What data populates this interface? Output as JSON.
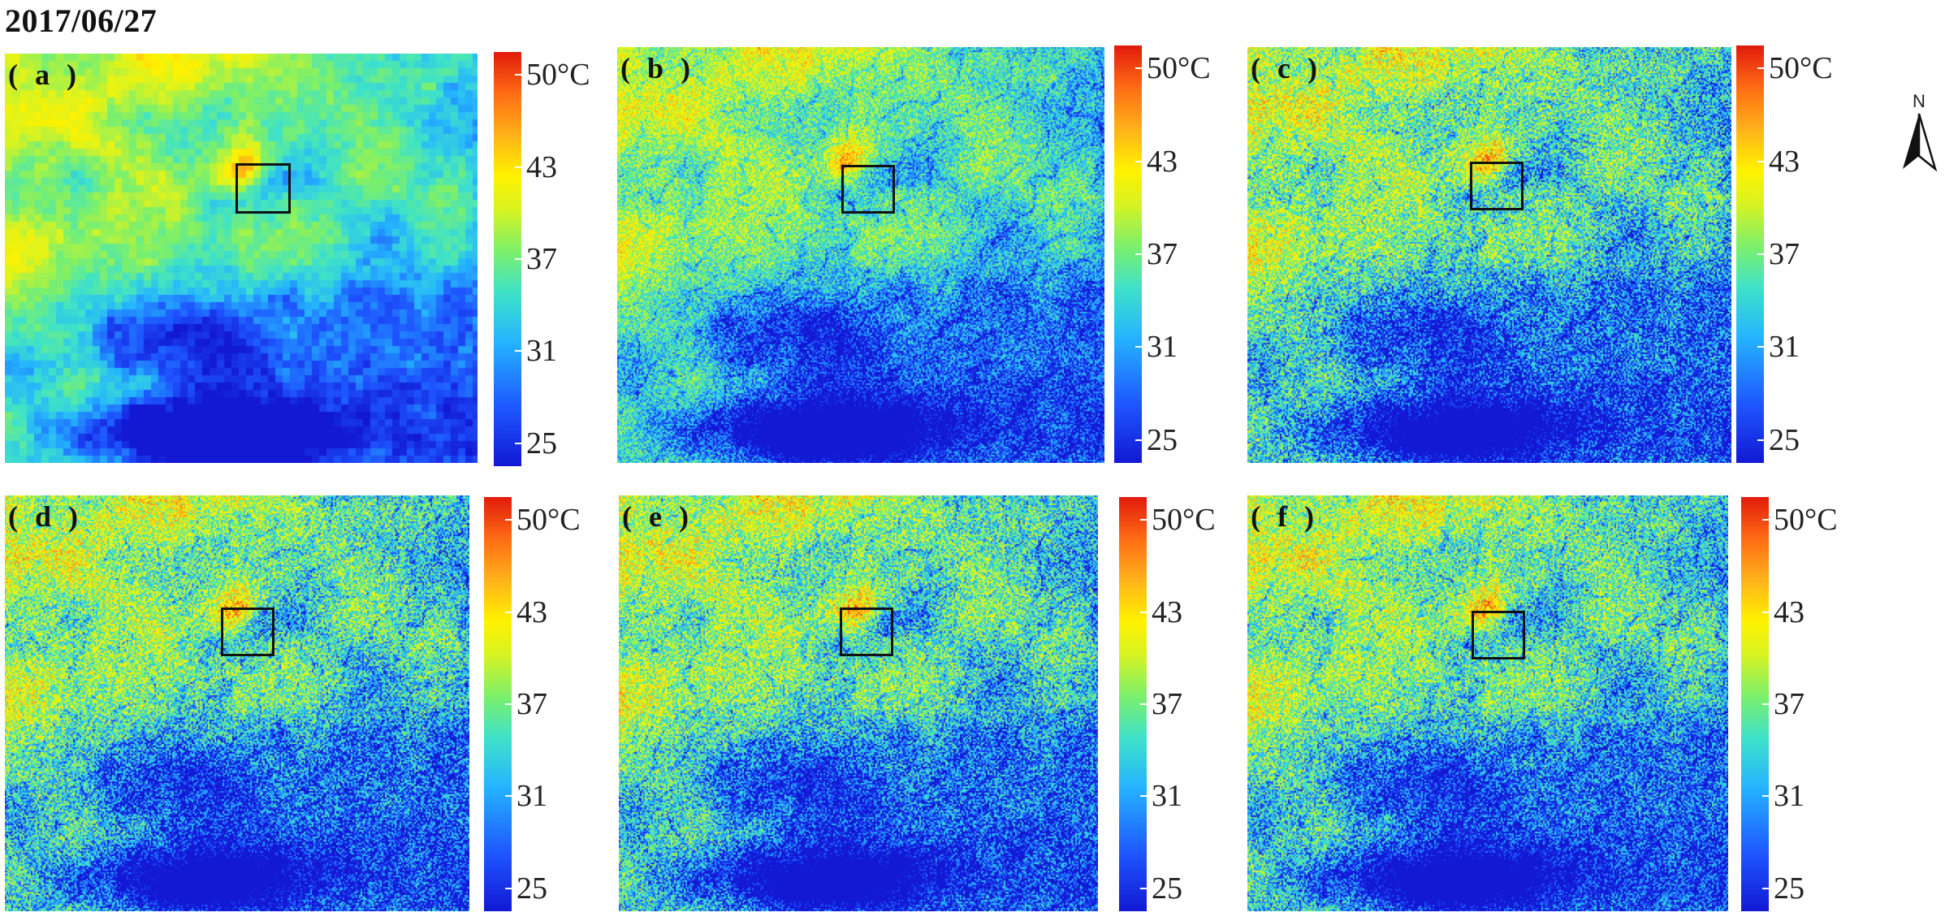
{
  "title": "2017/06/27",
  "colorbar": {
    "ticks": [
      "50°C",
      "43",
      "37",
      "31",
      "25"
    ],
    "stops": [
      "#1218d4",
      "#1e56ff",
      "#25b4ff",
      "#3fe2c8",
      "#7df06a",
      "#d8f321",
      "#fff200",
      "#ffb21a",
      "#ff6b14",
      "#e11a0c"
    ]
  },
  "north_arrow": {
    "label": "N"
  },
  "panels": [
    {
      "label": "( a )",
      "resolution": "coarse"
    },
    {
      "label": "( b )",
      "resolution": "fine"
    },
    {
      "label": "( c )",
      "resolution": "fine"
    },
    {
      "label": "( d )",
      "resolution": "fine"
    },
    {
      "label": "( e )",
      "resolution": "fine"
    },
    {
      "label": "( f )",
      "resolution": "fine"
    }
  ]
}
